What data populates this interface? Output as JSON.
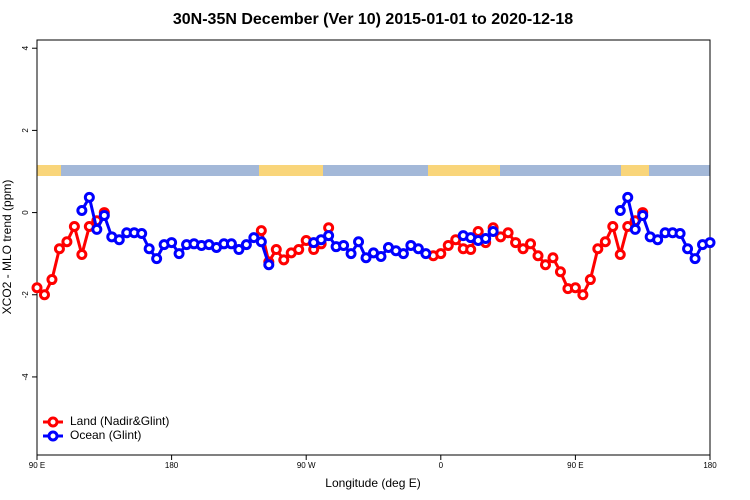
{
  "chart_data": {
    "type": "line",
    "title": "30N-35N December (Ver 10)   2015-01-01 to 2020-12-18",
    "x_label": "Longitude (deg E)",
    "y_label": "XCO2 - MLO trend (ppm)",
    "x": [
      90,
      95,
      100,
      105,
      110,
      115,
      120,
      125,
      130,
      135,
      140,
      145,
      150,
      155,
      160,
      165,
      170,
      175,
      180,
      185,
      190,
      195,
      200,
      205,
      210,
      215,
      220,
      225,
      230,
      235,
      240,
      245,
      250,
      255,
      260,
      265,
      270,
      275,
      280,
      285,
      290,
      295,
      300,
      305,
      310,
      315,
      320,
      325,
      330,
      335,
      340,
      345,
      350,
      355,
      360,
      365,
      370,
      375,
      380,
      385,
      390,
      395,
      400,
      405,
      410,
      415,
      420,
      425,
      430,
      435,
      440,
      445,
      450,
      455,
      460,
      465,
      470,
      475,
      480,
      485,
      490,
      495,
      500,
      505,
      510,
      515,
      520,
      525,
      530,
      535,
      540
    ],
    "series": [
      {
        "name": "Land (Nadir&Glint)",
        "color": "#ff0000",
        "values": [
          -1.83,
          -2.0,
          -1.63,
          -0.88,
          -0.71,
          -0.34,
          -1.02,
          -0.34,
          -0.2,
          0.0,
          null,
          null,
          null,
          null,
          null,
          null,
          null,
          null,
          null,
          null,
          null,
          null,
          null,
          null,
          null,
          null,
          null,
          null,
          null,
          null,
          -0.44,
          -1.2,
          -0.9,
          -1.15,
          -0.98,
          -0.9,
          -0.68,
          -0.9,
          -0.76,
          -0.37,
          null,
          null,
          null,
          null,
          null,
          null,
          null,
          null,
          null,
          null,
          null,
          null,
          null,
          -1.05,
          -1.0,
          -0.8,
          -0.66,
          -0.88,
          -0.9,
          -0.46,
          -0.73,
          -0.37,
          -0.59,
          -0.49,
          -0.73,
          -0.88,
          -0.76,
          -1.05,
          -1.27,
          -1.1,
          -1.44,
          -1.85,
          -1.83,
          -2.0,
          -1.63,
          -0.88,
          -0.71,
          -0.34,
          -1.02,
          -0.34,
          -0.2,
          0.0,
          null,
          null,
          null,
          null,
          null,
          null,
          null,
          null,
          null
        ]
      },
      {
        "name": "Ocean (Glint)",
        "color": "#0000ff",
        "values": [
          null,
          null,
          null,
          null,
          null,
          null,
          0.05,
          0.37,
          -0.41,
          -0.07,
          -0.59,
          -0.66,
          -0.49,
          -0.49,
          -0.51,
          -0.88,
          -1.12,
          -0.78,
          -0.73,
          -1.0,
          -0.78,
          -0.76,
          -0.8,
          -0.78,
          -0.85,
          -0.76,
          -0.76,
          -0.9,
          -0.78,
          -0.61,
          -0.71,
          -1.27,
          null,
          null,
          null,
          null,
          null,
          -0.73,
          -0.66,
          -0.56,
          -0.83,
          -0.8,
          -1.0,
          -0.71,
          -1.1,
          -0.98,
          -1.07,
          -0.85,
          -0.93,
          -1.0,
          -0.8,
          -0.88,
          -1.0,
          null,
          null,
          null,
          null,
          -0.56,
          -0.61,
          -0.68,
          -0.63,
          -0.46,
          null,
          null,
          null,
          null,
          null,
          null,
          null,
          null,
          null,
          null,
          null,
          null,
          null,
          null,
          null,
          null,
          0.05,
          0.37,
          -0.41,
          -0.07,
          -0.59,
          -0.66,
          -0.49,
          -0.49,
          -0.51,
          -0.88,
          -1.12,
          -0.78,
          -0.73
        ]
      }
    ],
    "xlim": [
      90,
      540
    ],
    "xticks": [
      {
        "value": 90,
        "label": "90 E"
      },
      180,
      {
        "value": 270,
        "label": "90 W"
      },
      {
        "value": 360,
        "label": "0"
      },
      {
        "value": 450,
        "label": "90 E"
      },
      {
        "value": 540,
        "label": "180"
      }
    ],
    "ylim": [
      -5.9,
      4.2
    ],
    "yticks": [
      -4,
      -2,
      0,
      2,
      4
    ],
    "legend": "bottom-left"
  }
}
